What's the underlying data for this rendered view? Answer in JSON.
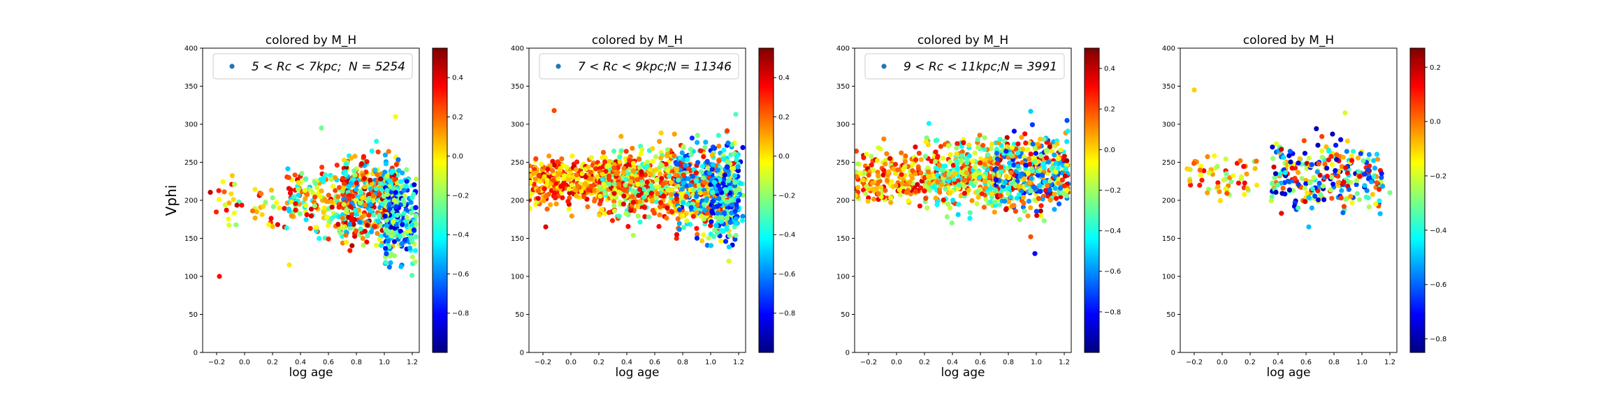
{
  "figure": {
    "shared_ylabel": "Vphi"
  },
  "colormap": {
    "name": "jet",
    "stops": [
      "#00007f",
      "#0000ff",
      "#007fff",
      "#00ffff",
      "#7fff7f",
      "#ffff00",
      "#ff7f00",
      "#ff0000",
      "#7f0000"
    ]
  },
  "chart_data": [
    {
      "type": "scatter",
      "title": "colored by M_H",
      "xlabel": "log age",
      "ylabel": "Vphi",
      "xlim": [
        -0.3,
        1.25
      ],
      "ylim": [
        0,
        400
      ],
      "xticks": [
        "−0.2",
        "0.0",
        "0.2",
        "0.4",
        "0.6",
        "0.8",
        "1.0",
        "1.2"
      ],
      "xtick_values": [
        -0.2,
        0.0,
        0.2,
        0.4,
        0.6,
        0.8,
        1.0,
        1.2
      ],
      "yticks": [
        "0",
        "50",
        "100",
        "150",
        "200",
        "250",
        "300",
        "350",
        "400"
      ],
      "ytick_values": [
        0,
        50,
        100,
        150,
        200,
        250,
        300,
        350,
        400
      ],
      "legend": {
        "label_math": "5 < Rc < 7kpc;",
        "n_label": "N = 5254",
        "placement": "top-right",
        "marker_color": "#1f77b4"
      },
      "colorbar": {
        "label": "M_H",
        "range": [
          -1.0,
          0.55
        ],
        "ticks": [
          "0.4",
          "0.2",
          "0.0",
          "−0.2",
          "−0.4",
          "−0.6",
          "−0.8"
        ],
        "tick_values": [
          0.4,
          0.2,
          0.0,
          -0.2,
          -0.4,
          -0.6,
          -0.8
        ]
      },
      "n_points": 5254,
      "clusters": [
        {
          "x": [
            -0.25,
            0.3
          ],
          "y": [
            150,
            235
          ],
          "mh": [
            -0.3,
            0.45
          ],
          "n": 45
        },
        {
          "x": [
            0.3,
            0.75
          ],
          "y": [
            140,
            265
          ],
          "mh": [
            -0.5,
            0.45
          ],
          "n": 180
        },
        {
          "x": [
            0.7,
            1.1
          ],
          "y": [
            130,
            270
          ],
          "mh": [
            -0.6,
            0.5
          ],
          "n": 480
        },
        {
          "x": [
            1.0,
            1.23
          ],
          "y": [
            95,
            265
          ],
          "mh": [
            -0.9,
            -0.1
          ],
          "n": 220
        }
      ],
      "points": [
        {
          "x": -0.18,
          "y": 100,
          "mh": 0.35
        },
        {
          "x": 1.08,
          "y": 310,
          "mh": -0.05
        },
        {
          "x": 0.55,
          "y": 295,
          "mh": -0.25
        },
        {
          "x": 0.32,
          "y": 115,
          "mh": 0.0
        }
      ]
    },
    {
      "type": "scatter",
      "title": "colored by M_H",
      "xlabel": "log age",
      "ylabel": "",
      "xlim": [
        -0.3,
        1.25
      ],
      "ylim": [
        0,
        400
      ],
      "xticks": [
        "−0.2",
        "0.0",
        "0.2",
        "0.4",
        "0.6",
        "0.8",
        "1.0",
        "1.2"
      ],
      "xtick_values": [
        -0.2,
        0.0,
        0.2,
        0.4,
        0.6,
        0.8,
        1.0,
        1.2
      ],
      "yticks": [
        "0",
        "50",
        "100",
        "150",
        "200",
        "250",
        "300",
        "350",
        "400"
      ],
      "ytick_values": [
        0,
        50,
        100,
        150,
        200,
        250,
        300,
        350,
        400
      ],
      "legend": {
        "label_math": "7 < Rc < 9kpc;",
        "n_label": "N = 11346",
        "placement": "top-right",
        "marker_color": "#1f77b4"
      },
      "colorbar": {
        "label": "M_H",
        "range": [
          -1.0,
          0.55
        ],
        "ticks": [
          "0.4",
          "0.2",
          "0.0",
          "−0.2",
          "−0.4",
          "−0.6",
          "−0.8"
        ],
        "tick_values": [
          0.4,
          0.2,
          0.0,
          -0.2,
          -0.4,
          -0.6,
          -0.8
        ]
      },
      "n_points": 11346,
      "clusters": [
        {
          "x": [
            -0.3,
            0.2
          ],
          "y": [
            185,
            265
          ],
          "mh": [
            -0.1,
            0.45
          ],
          "n": 300
        },
        {
          "x": [
            0.2,
            0.8
          ],
          "y": [
            165,
            280
          ],
          "mh": [
            -0.4,
            0.45
          ],
          "n": 550
        },
        {
          "x": [
            0.75,
            1.2
          ],
          "y": [
            140,
            290
          ],
          "mh": [
            -0.8,
            0.4
          ],
          "n": 500
        },
        {
          "x": [
            1.0,
            1.23
          ],
          "y": [
            125,
            285
          ],
          "mh": [
            -0.9,
            -0.2
          ],
          "n": 140
        }
      ],
      "points": [
        {
          "x": -0.12,
          "y": 318,
          "mh": 0.25
        },
        {
          "x": -0.18,
          "y": 165,
          "mh": 0.4
        },
        {
          "x": 1.18,
          "y": 313,
          "mh": -0.3
        },
        {
          "x": 1.13,
          "y": 120,
          "mh": -0.1
        }
      ]
    },
    {
      "type": "scatter",
      "title": "colored by M_H",
      "xlabel": "log age",
      "ylabel": "",
      "xlim": [
        -0.3,
        1.25
      ],
      "ylim": [
        0,
        400
      ],
      "xticks": [
        "−0.2",
        "0.0",
        "0.2",
        "0.4",
        "0.6",
        "0.8",
        "1.0",
        "1.2"
      ],
      "xtick_values": [
        -0.2,
        0.0,
        0.2,
        0.4,
        0.6,
        0.8,
        1.0,
        1.2
      ],
      "yticks": [
        "0",
        "50",
        "100",
        "150",
        "200",
        "250",
        "300",
        "350",
        "400"
      ],
      "ytick_values": [
        0,
        50,
        100,
        150,
        200,
        250,
        300,
        350,
        400
      ],
      "legend": {
        "label_math": "9 < Rc < 11kpc;",
        "n_label": "N = 3991",
        "placement": "top-right",
        "marker_color": "#1f77b4"
      },
      "colorbar": {
        "label": "M_H",
        "range": [
          -1.0,
          0.5
        ],
        "ticks": [
          "0.4",
          "0.2",
          "0.0",
          "−0.2",
          "−0.4",
          "−0.6",
          "−0.8"
        ],
        "tick_values": [
          0.4,
          0.2,
          0.0,
          -0.2,
          -0.4,
          -0.6,
          -0.8
        ]
      },
      "n_points": 3991,
      "clusters": [
        {
          "x": [
            -0.3,
            0.2
          ],
          "y": [
            180,
            280
          ],
          "mh": [
            -0.2,
            0.4
          ],
          "n": 180
        },
        {
          "x": [
            0.2,
            0.75
          ],
          "y": [
            175,
            295
          ],
          "mh": [
            -0.5,
            0.35
          ],
          "n": 400
        },
        {
          "x": [
            0.7,
            1.23
          ],
          "y": [
            170,
            300
          ],
          "mh": [
            -0.8,
            0.45
          ],
          "n": 450
        }
      ],
      "points": [
        {
          "x": 0.99,
          "y": 130,
          "mh": -0.8
        },
        {
          "x": 0.96,
          "y": 317,
          "mh": -0.5
        },
        {
          "x": 0.96,
          "y": 152,
          "mh": 0.2
        },
        {
          "x": 1.22,
          "y": 305,
          "mh": -0.7
        }
      ]
    },
    {
      "type": "scatter",
      "title": "colored by M_H",
      "xlabel": "log age",
      "ylabel": "",
      "xlim": [
        -0.3,
        1.25
      ],
      "ylim": [
        0,
        400
      ],
      "xticks": [
        "−0.2",
        "0.0",
        "0.2",
        "0.4",
        "0.6",
        "0.8",
        "1.0",
        "1.2"
      ],
      "xtick_values": [
        -0.2,
        0.0,
        0.2,
        0.4,
        0.6,
        0.8,
        1.0,
        1.2
      ],
      "yticks": [
        "0",
        "50",
        "100",
        "150",
        "200",
        "250",
        "300",
        "350",
        "400"
      ],
      "ytick_values": [
        0,
        50,
        100,
        150,
        200,
        250,
        300,
        350,
        400
      ],
      "legend": null,
      "colorbar": {
        "label": "M_H",
        "range": [
          -0.85,
          0.27
        ],
        "ticks": [
          "0.2",
          "0.0",
          "−0.2",
          "−0.4",
          "−0.6",
          "−0.8"
        ],
        "tick_values": [
          0.2,
          0.0,
          -0.2,
          -0.4,
          -0.6,
          -0.8
        ]
      },
      "clusters": [
        {
          "x": [
            -0.25,
            0.25
          ],
          "y": [
            190,
            265
          ],
          "mh": [
            -0.3,
            0.15
          ],
          "n": 60
        },
        {
          "x": [
            0.35,
            1.15
          ],
          "y": [
            175,
            290
          ],
          "mh": [
            -0.8,
            0.2
          ],
          "n": 280
        }
      ],
      "points": [
        {
          "x": -0.2,
          "y": 345,
          "mh": -0.1
        },
        {
          "x": 0.62,
          "y": 165,
          "mh": -0.5
        },
        {
          "x": 1.2,
          "y": 210,
          "mh": -0.3
        },
        {
          "x": 0.88,
          "y": 315,
          "mh": -0.2
        }
      ]
    }
  ]
}
